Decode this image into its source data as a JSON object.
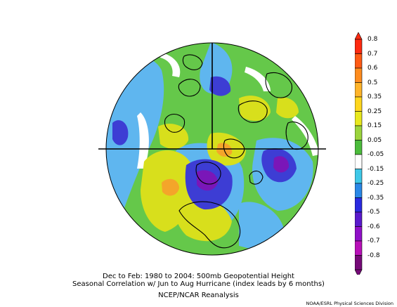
{
  "map": {
    "projection": "north polar stereographic",
    "variable": "500mb Geopotential Height seasonal correlation",
    "shading_colors": {
      "strong_negative": "#7a16b8",
      "negative": "#3d3dd4",
      "weak_negative": "#5fb6ef",
      "neutral": "#ffffff",
      "weak_positive": "#65c84a",
      "positive": "#d8df1c",
      "strong_positive": "#f4a52a"
    }
  },
  "captions": {
    "line1": "Dec to Feb: 1980 to 2004: 500mb Geopotential Height",
    "line2": "Seasonal Correlation w/ Jun to Aug Hurricane (index leads by 6 months)",
    "line3": "NCEP/NCAR Reanalysis"
  },
  "credit": "NOAA/ESRL Physical Sciences Division",
  "colorbar": {
    "labels": [
      "0.8",
      "0.7",
      "0.6",
      "0.5",
      "0.35",
      "0.25",
      "0.15",
      "0.05",
      "-0.05",
      "-0.15",
      "-0.25",
      "-0.35",
      "-0.5",
      "-0.6",
      "-0.7",
      "-0.8"
    ],
    "colors": [
      "#ff2a10",
      "#ff5a14",
      "#ff8c1e",
      "#ffb42a",
      "#ffd61e",
      "#e8e81e",
      "#9bd43c",
      "#4cbc3c",
      "#ffffff",
      "#3ec8e8",
      "#2a88e6",
      "#2a2ae0",
      "#5a1acc",
      "#9010c8",
      "#b810b8",
      "#760a78"
    ]
  }
}
